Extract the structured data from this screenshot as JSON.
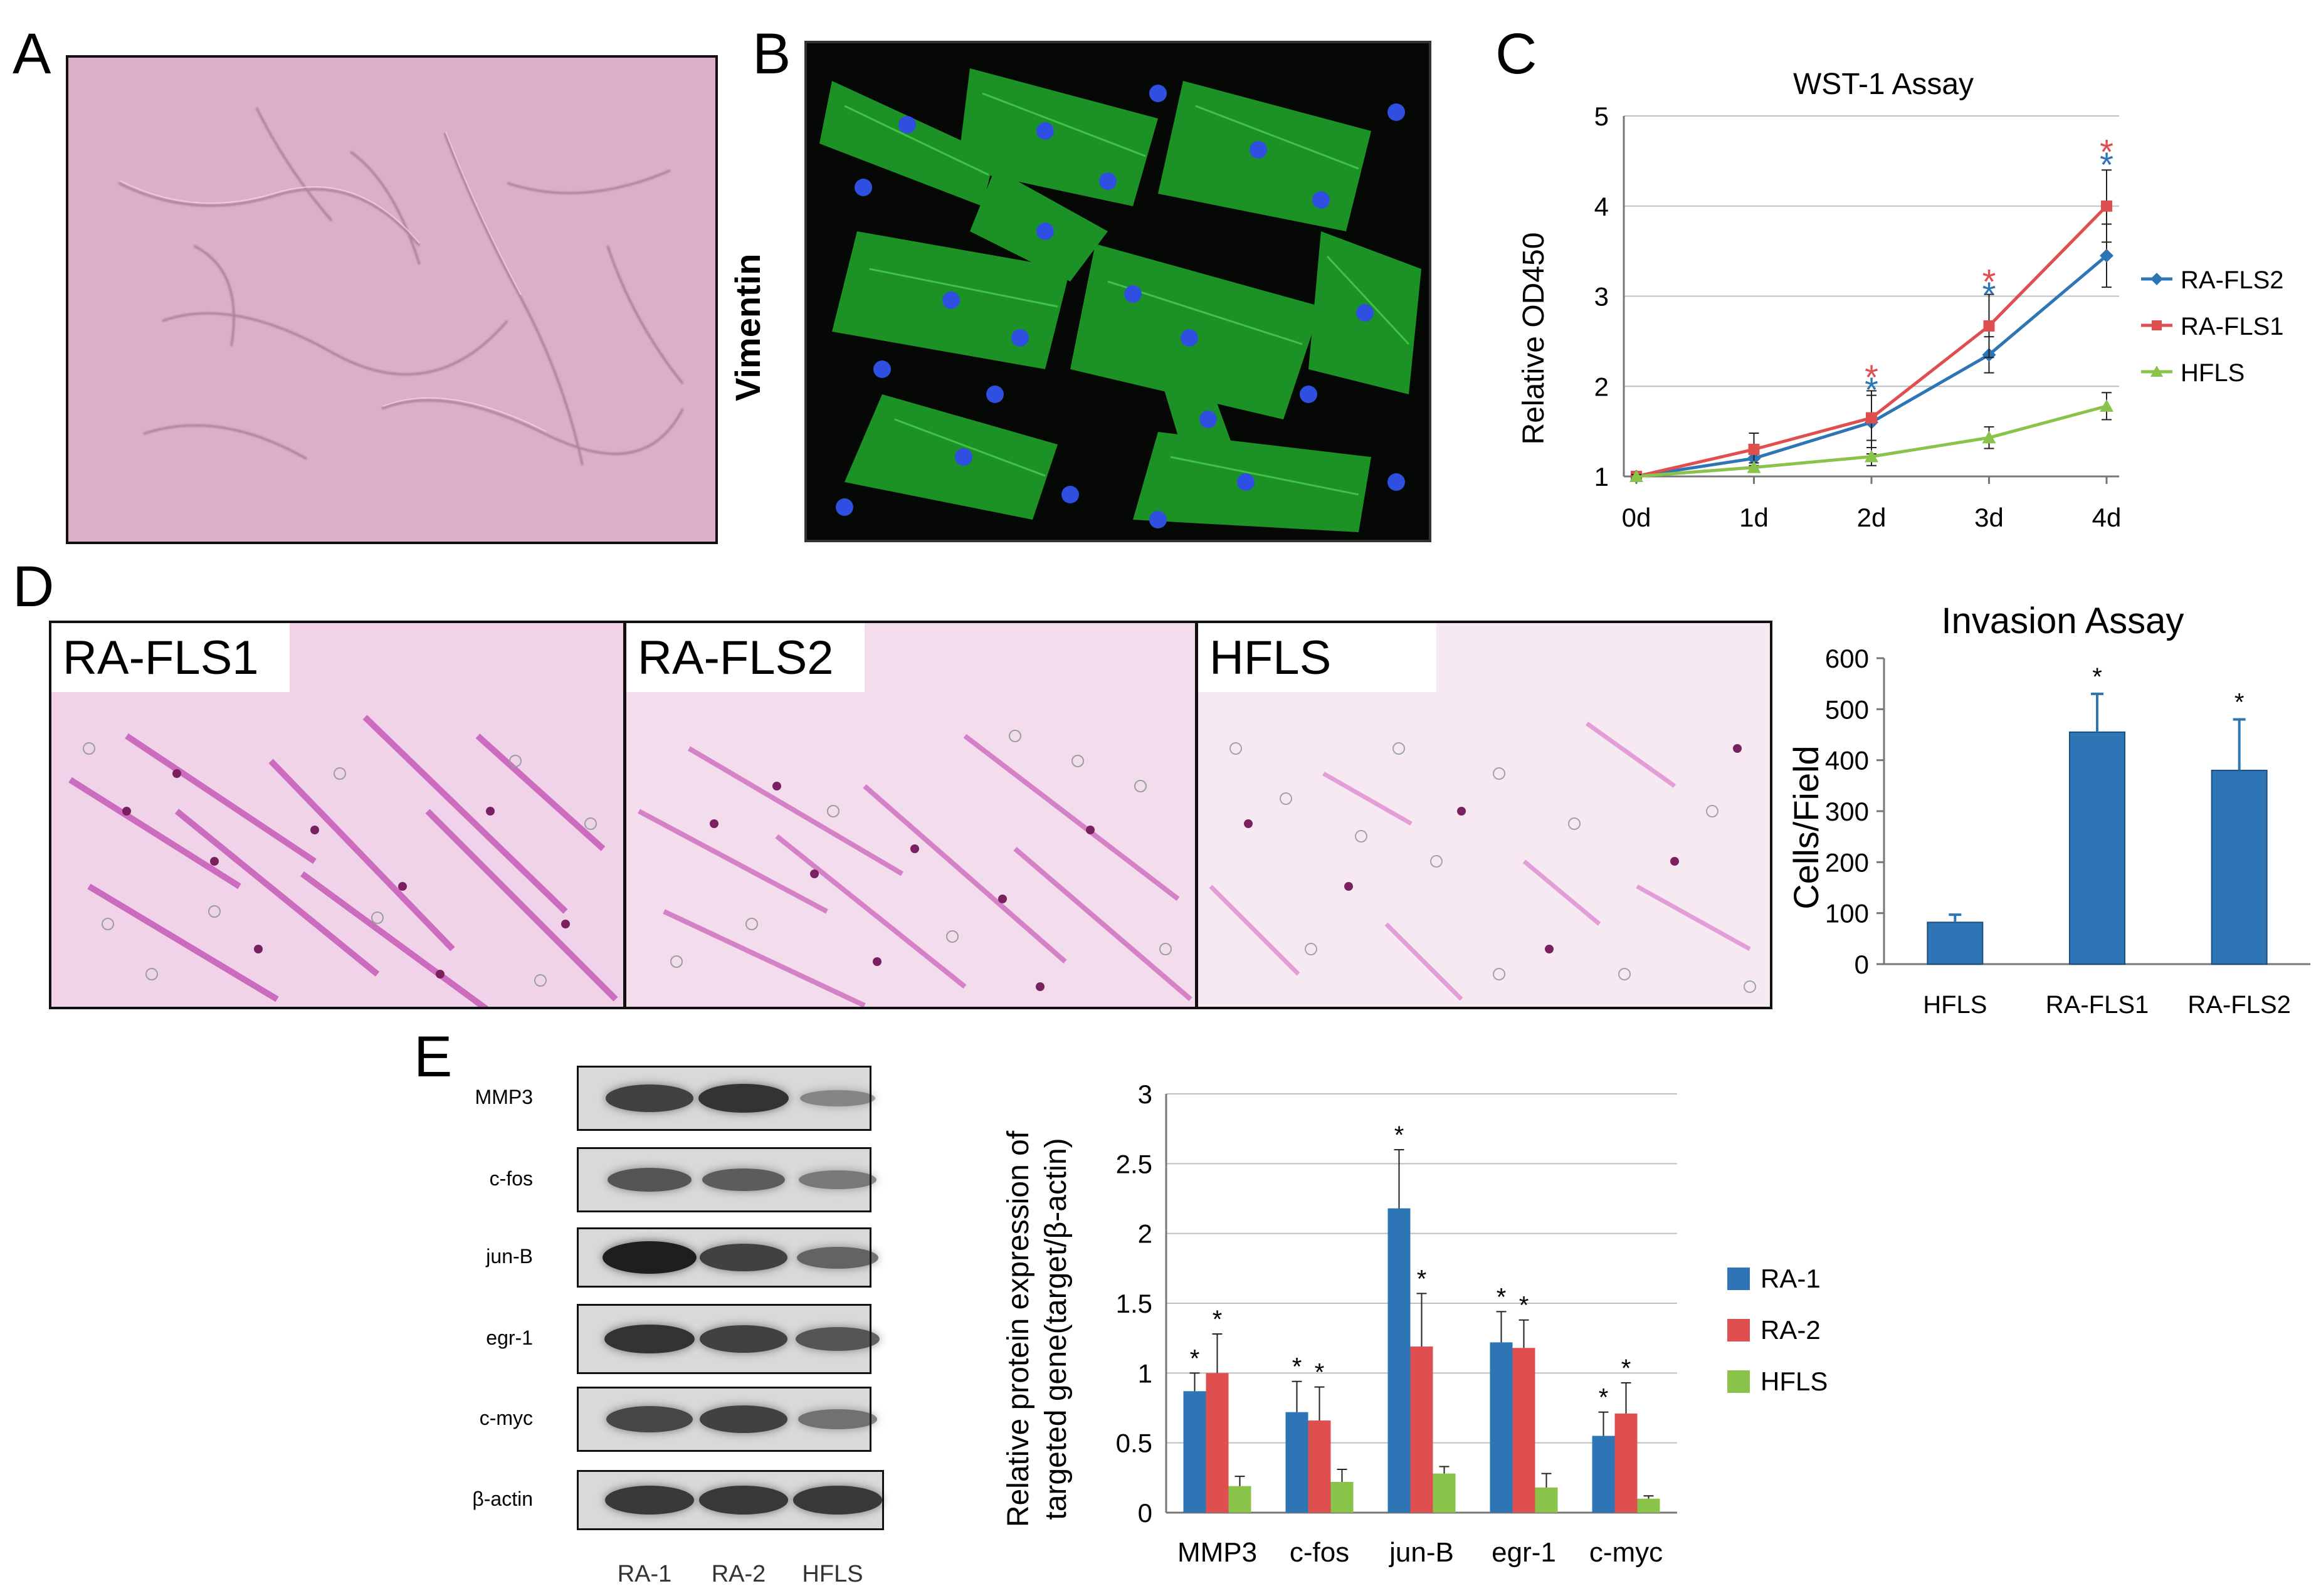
{
  "panels": {
    "A": "A",
    "B": "B",
    "C": "C",
    "D": "D",
    "E": "E"
  },
  "panel_b_stain": "Vimentin",
  "panel_d_images": [
    "RA-FLS1",
    "RA-FLS2",
    "HFLS"
  ],
  "western_blot": {
    "proteins": [
      "MMP3",
      "c-fos",
      "jun-B",
      "egr-1",
      "c-myc",
      "β-actin"
    ],
    "lanes": [
      "RA-1",
      "RA-2",
      "HFLS"
    ]
  },
  "colors": {
    "blue": "#2e75b6",
    "red": "#e04f4f",
    "green": "#8ac34a",
    "bar_blue": "#2e75b6"
  },
  "chart_data": [
    {
      "id": "C",
      "type": "line",
      "title": "WST-1 Assay",
      "xlabel": "",
      "ylabel": "Relative OD450",
      "x": [
        "0d",
        "1d",
        "2d",
        "3d",
        "4d"
      ],
      "ylim": [
        1,
        5
      ],
      "yticks": [
        "1",
        "2",
        "3",
        "4",
        "5"
      ],
      "grid": true,
      "legend": "right",
      "series": [
        {
          "name": "RA-FLS2",
          "values": [
            1.0,
            1.2,
            1.6,
            2.35,
            3.45
          ],
          "errors": [
            0.02,
            0.1,
            0.35,
            0.2,
            0.35
          ],
          "color": "#2e75b6",
          "marker": "diamond"
        },
        {
          "name": "RA-FLS1",
          "values": [
            1.0,
            1.3,
            1.65,
            2.67,
            4.0
          ],
          "errors": [
            0.02,
            0.18,
            0.25,
            0.35,
            0.4
          ],
          "color": "#e04f4f",
          "marker": "square"
        },
        {
          "name": "HFLS",
          "values": [
            1.0,
            1.1,
            1.22,
            1.43,
            1.78
          ],
          "errors": [
            0.02,
            0.05,
            0.1,
            0.12,
            0.15
          ],
          "color": "#8ac34a",
          "marker": "triangle"
        }
      ],
      "significance": [
        {
          "x": "2d",
          "marks": [
            {
              "text": "*",
              "color": "#e04f4f",
              "y": 2.12
            },
            {
              "text": "*",
              "color": "#2e75b6",
              "y": 1.98
            }
          ]
        },
        {
          "x": "3d",
          "marks": [
            {
              "text": "*",
              "color": "#e04f4f",
              "y": 3.18
            },
            {
              "text": "*",
              "color": "#2e75b6",
              "y": 3.04
            }
          ]
        },
        {
          "x": "4d",
          "marks": [
            {
              "text": "*",
              "color": "#e04f4f",
              "y": 4.62
            },
            {
              "text": "*",
              "color": "#2e75b6",
              "y": 4.48
            }
          ]
        }
      ]
    },
    {
      "id": "D",
      "type": "bar",
      "title": "Invasion Assay",
      "xlabel": "",
      "ylabel": "Cells/Field",
      "categories": [
        "HFLS",
        "RA-FLS1",
        "RA-FLS2"
      ],
      "values": [
        82,
        455,
        380
      ],
      "errors": [
        15,
        75,
        100
      ],
      "significance": [
        "",
        "*",
        "*"
      ],
      "ylim": [
        0,
        600
      ],
      "yticks": [
        "0",
        "100",
        "200",
        "300",
        "400",
        "500",
        "600"
      ],
      "grid": false,
      "color": "#2e75b6"
    },
    {
      "id": "E",
      "type": "bar",
      "title": "",
      "xlabel": "",
      "ylabel": "Relative protein expression of targeted gene(target/β-actin)",
      "ylabel_lines": [
        "Relative protein expression of",
        "targeted gene(target/β-actin)"
      ],
      "categories": [
        "MMP3",
        "c-fos",
        "jun-B",
        "egr-1",
        "c-myc"
      ],
      "ylim": [
        0,
        3
      ],
      "yticks": [
        "0",
        "0.5",
        "1",
        "1.5",
        "2",
        "2.5",
        "3"
      ],
      "grid": true,
      "legend": "right",
      "series": [
        {
          "name": "RA-1",
          "values": [
            0.87,
            0.72,
            2.18,
            1.22,
            0.55
          ],
          "errors": [
            0.13,
            0.22,
            0.42,
            0.22,
            0.17
          ],
          "significance": [
            "*",
            "*",
            "*",
            "*",
            "*"
          ],
          "color": "#2e75b6"
        },
        {
          "name": "RA-2",
          "values": [
            1.0,
            0.66,
            1.19,
            1.18,
            0.71
          ],
          "errors": [
            0.28,
            0.24,
            0.38,
            0.2,
            0.22
          ],
          "significance": [
            "*",
            "*",
            "*",
            "*",
            "*"
          ],
          "color": "#e04f4f"
        },
        {
          "name": "HFLS",
          "values": [
            0.19,
            0.22,
            0.28,
            0.18,
            0.1
          ],
          "errors": [
            0.07,
            0.09,
            0.05,
            0.1,
            0.02
          ],
          "significance": [
            "",
            "",
            "",
            "",
            ""
          ],
          "color": "#8ac34a"
        }
      ]
    }
  ]
}
